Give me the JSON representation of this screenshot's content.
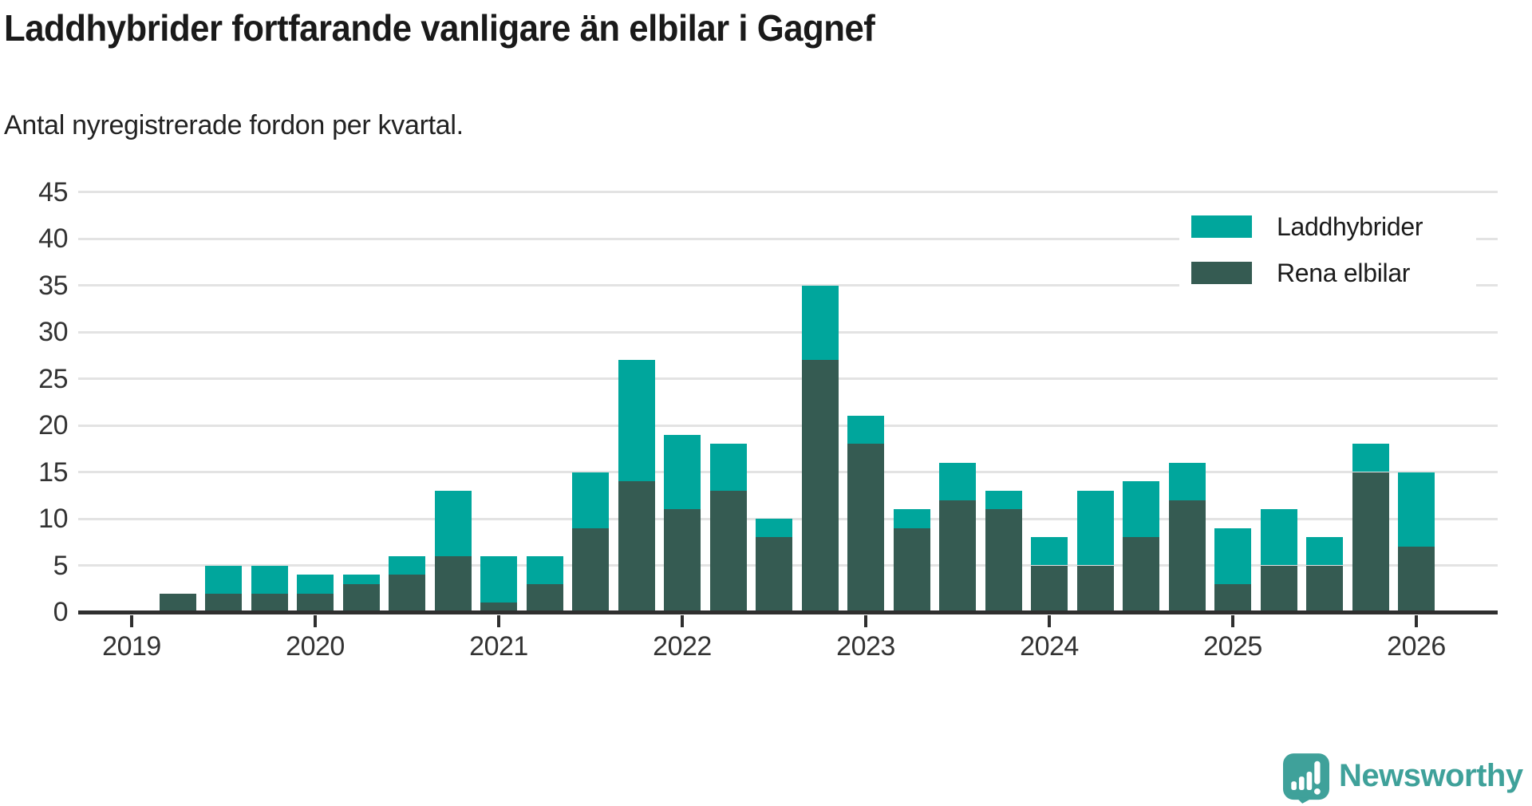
{
  "chart_data": {
    "type": "bar",
    "stacked": true,
    "title": "Laddhybrider fortfarande vanligare än elbilar i Gagnef",
    "subtitle": "Antal nyregistrerade fordon per kvartal.",
    "x": [
      "2019Q1",
      "2019Q2",
      "2019Q3",
      "2019Q4",
      "2020Q1",
      "2020Q2",
      "2020Q3",
      "2020Q4",
      "2021Q1",
      "2021Q2",
      "2021Q3",
      "2021Q4",
      "2022Q1",
      "2022Q2",
      "2022Q3",
      "2022Q4",
      "2023Q1",
      "2023Q2",
      "2023Q3",
      "2023Q4",
      "2024Q1",
      "2024Q2",
      "2024Q3",
      "2024Q4",
      "2025Q1",
      "2025Q2",
      "2025Q3",
      "2025Q4",
      "2026Q1"
    ],
    "x_tick_labels": [
      "2019",
      "2020",
      "2021",
      "2022",
      "2023",
      "2024",
      "2025",
      "2026"
    ],
    "series": [
      {
        "name": "Laddhybrider",
        "color": "#00A69C",
        "values": [
          0,
          0,
          3,
          3,
          2,
          1,
          2,
          7,
          5,
          3,
          6,
          13,
          8,
          5,
          2,
          8,
          3,
          2,
          4,
          2,
          3,
          8,
          6,
          4,
          6,
          6,
          3,
          3,
          8
        ]
      },
      {
        "name": "Rena elbilar",
        "color": "#355B52",
        "values": [
          0,
          2,
          2,
          2,
          2,
          3,
          4,
          6,
          1,
          3,
          9,
          14,
          11,
          13,
          8,
          27,
          18,
          9,
          12,
          11,
          5,
          5,
          8,
          12,
          3,
          5,
          5,
          15,
          7
        ]
      }
    ],
    "totals": [
      0,
      2,
      5,
      5,
      4,
      4,
      6,
      13,
      6,
      6,
      15,
      27,
      19,
      18,
      10,
      35,
      21,
      11,
      16,
      13,
      8,
      13,
      14,
      16,
      9,
      11,
      8,
      18,
      15
    ],
    "stack_order_bottom_to_top": [
      "Rena elbilar",
      "Laddhybrider"
    ],
    "ylim": [
      0,
      45
    ],
    "yticks": [
      0,
      5,
      10,
      15,
      20,
      25,
      30,
      35,
      40,
      45
    ],
    "grid": "horizontal",
    "legend_position": "top-right"
  },
  "branding": {
    "label": "Newsworthy",
    "color": "#3FA19A"
  }
}
